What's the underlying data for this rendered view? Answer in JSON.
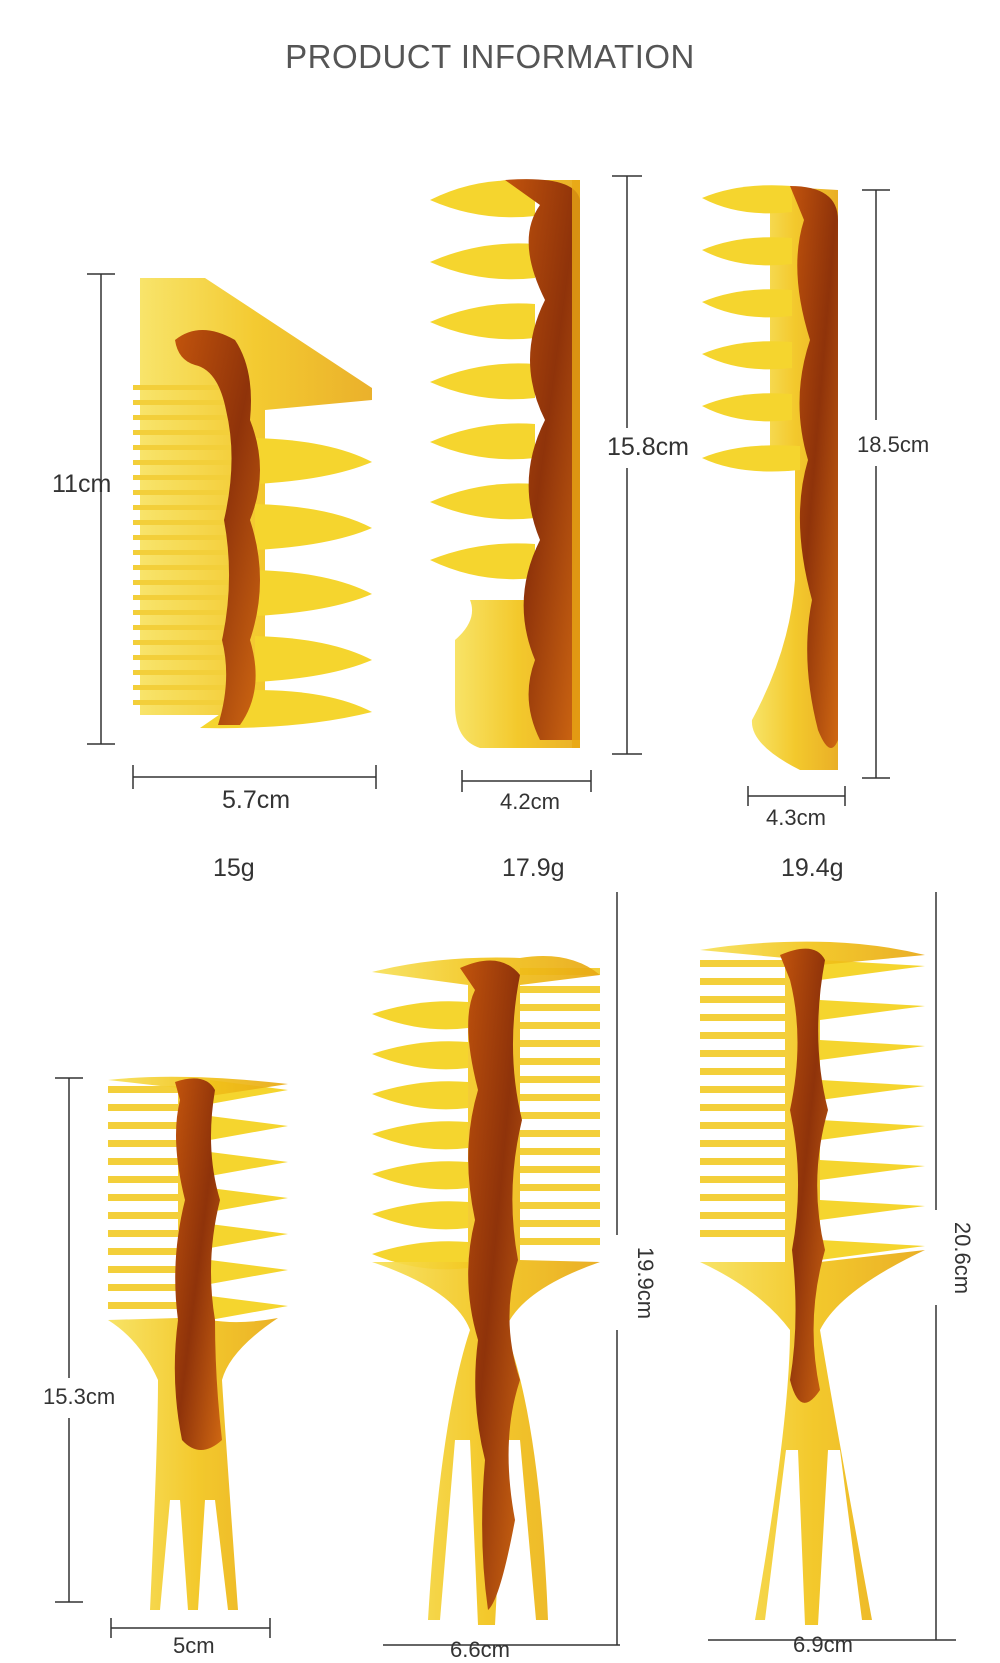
{
  "header": {
    "title": "PRODUCT INFORMATION"
  },
  "colors": {
    "amber_light": "#f5d21a",
    "amber_mid": "#e59a10",
    "tortoise": "#a8400b",
    "line": "#333333"
  },
  "top_row": [
    {
      "height": "11cm",
      "width": "5.7cm",
      "weight": "15g"
    },
    {
      "height": "15.8cm",
      "width": "4.2cm",
      "weight": "17.9g"
    },
    {
      "height": "18.5cm",
      "width": "4.3cm",
      "weight": "19.4g"
    }
  ],
  "bottom_row": [
    {
      "height": "15.3cm",
      "width": "5cm"
    },
    {
      "height": "19.9cm",
      "width": "6.6cm"
    },
    {
      "height": "20.6cm",
      "width": "6.9cm"
    }
  ]
}
